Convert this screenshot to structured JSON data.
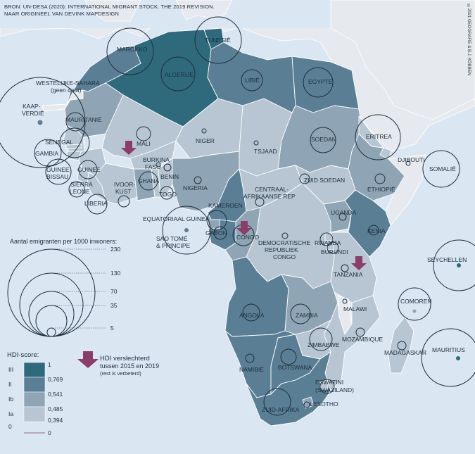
{
  "source": {
    "line1": "BRON: UN-DESA (2020): INTERNATIONAL MIGRANT STOCK. THE 2019 REVISION.",
    "line2": "NAAR ORIGINEEL VAN DEVINK MAPDESIGN"
  },
  "copyright": "©2021 GEOGRAFIE & B.J. KÖBBEN",
  "legend": {
    "circles_title": "Aantal emigranten per 1000 inwoners:",
    "circle_values": [
      "230",
      "130",
      "70",
      "35",
      "5"
    ],
    "hdi_title": "HDI-score:",
    "hdi_classes": [
      "III",
      "II",
      "Ib",
      "Ia",
      "0"
    ],
    "hdi_thresholds": [
      "1",
      "0,769",
      "0,541",
      "0,485",
      "0,394",
      "0"
    ],
    "arrow_line1": "HDI verslechterd",
    "arrow_line2": "tussen 2015 en 2019",
    "arrow_line3": "(rest is verbeterd)"
  },
  "colors": {
    "sea": "#dbe6f3",
    "nodata": "#e6eaee",
    "hdi_III": "#2f6a7c",
    "hdi_II": "#5a7f95",
    "hdi_Ib": "#8fa5b6",
    "hdi_Ia": "#b7c6d2",
    "arrow": "#8a3d68"
  },
  "countries": {
    "marokko": "MAROKKO",
    "algerije": "ALGERIJE",
    "tunesie": "TUNESIË",
    "libie": "LIBIË",
    "egypte": "EGYPTE",
    "ws1": "WESTELIJKE-SAHARA",
    "ws2": "(geen data)",
    "kv1": "KAAP-",
    "kv2": "VERDIË",
    "mauritanie": "MAURITANIË",
    "mali": "MALI",
    "niger": "NIGER",
    "tsjaad": "TSJAAD",
    "soedan": "SOEDAN",
    "eritrea": "ERITREA",
    "djibouti": "DJIBOUTI",
    "somalie": "SOMALIË",
    "senegal": "SENEGAL",
    "gambia": "GAMBIA",
    "gb1": "GUINEE",
    "gb2": "BISSAU",
    "guinee": "GUINEE",
    "sl1": "SIERRA",
    "sl2": "LEONE",
    "liberia": "LIBERIA",
    "bf1": "BURKINA",
    "bf2": "FASO",
    "ik1": "IVOOR-",
    "ik2": "KUST",
    "ghana": "GHANA",
    "benin": "BENIN",
    "togo": "TOGO",
    "nigeria": "NIGERIA",
    "car1": "CENTRAAL-",
    "car2": "AFRIKAANSE REP",
    "zuidsoedan": "ZUID SOEDAN",
    "ethiopie": "ETHIOPIË",
    "kameroen": "KAMEROEN",
    "eqguinea": "EQUATORIAAL GUINEA",
    "gabon": "GABON",
    "congo": "CONGO",
    "st1": "SAO TOMÉ",
    "st2": "& PRINCIPE",
    "drc1": "DEMOCRATISCHE",
    "drc2": "REPUBLIEK",
    "drc3": "CONGO",
    "uganda": "UGANDA",
    "kenia": "KENIA",
    "rwanda": "RWANDA",
    "burundi": "BURUNDI",
    "tanzania": "TANZANIA",
    "seychellen": "SEYCHELLEN",
    "angola": "ANGOLA",
    "zambia": "ZAMBIA",
    "malawi": "MALAWI",
    "comoren": "COMOREN",
    "zimbabwe": "ZIMBABWE",
    "mozambique": "MOZAMBIQUE",
    "madagaskar": "MADAGASKAR",
    "mauritius": "MAURITIUS",
    "namibie": "NAMIBIË",
    "botswana": "BOTSWANA",
    "es1": "ESWATINI",
    "es2": "(SWAZILAND)",
    "lesotho": "LESOTHO",
    "zuidafrika": "ZUID-AFRIKA"
  }
}
